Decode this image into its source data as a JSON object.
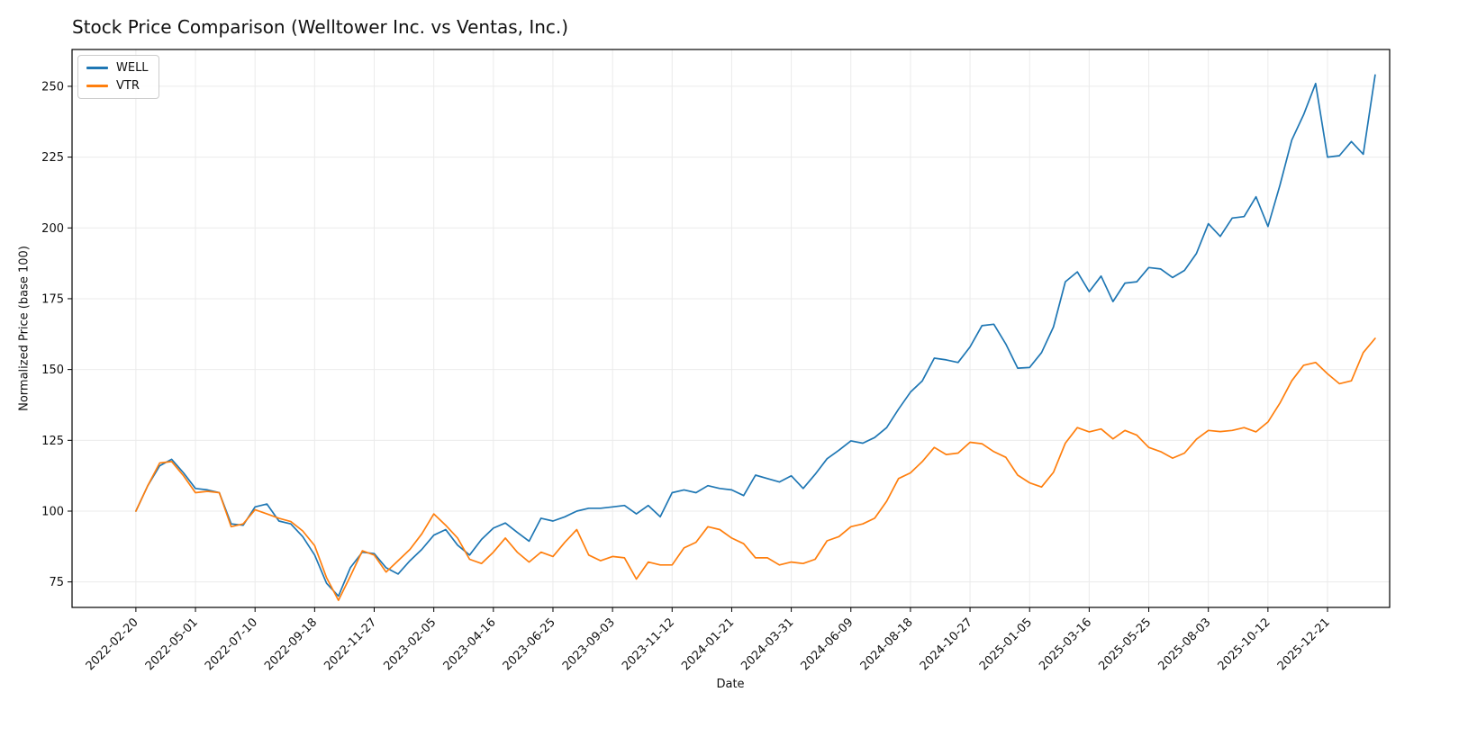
{
  "chart_data": {
    "type": "line",
    "title": "Stock Price Comparison (Welltower Inc. vs Ventas, Inc.)",
    "xlabel": "Date",
    "ylabel": "Normalized Price (base 100)",
    "grid": true,
    "legend_position": "upper left",
    "ylim": [
      66,
      263
    ],
    "xlim_days": [
      -75,
      1473
    ],
    "y_ticks": [
      75,
      100,
      125,
      150,
      175,
      200,
      225,
      250
    ],
    "x_tick_labels": [
      "2022-02-20",
      "2022-05-01",
      "2022-07-10",
      "2022-09-18",
      "2022-11-27",
      "2023-02-05",
      "2023-04-16",
      "2023-06-25",
      "2023-09-03",
      "2023-11-12",
      "2024-01-21",
      "2024-03-31",
      "2024-06-09",
      "2024-08-18",
      "2024-10-27",
      "2025-01-05",
      "2025-03-16",
      "2025-05-25",
      "2025-08-03",
      "2025-10-12",
      "2025-12-21"
    ],
    "dates": [
      "2022-02-20",
      "2022-03-06",
      "2022-03-20",
      "2022-04-03",
      "2022-04-17",
      "2022-05-01",
      "2022-05-15",
      "2022-05-29",
      "2022-06-12",
      "2022-06-26",
      "2022-07-10",
      "2022-07-24",
      "2022-08-07",
      "2022-08-21",
      "2022-09-04",
      "2022-09-18",
      "2022-10-02",
      "2022-10-16",
      "2022-10-30",
      "2022-11-13",
      "2022-11-27",
      "2022-12-11",
      "2022-12-25",
      "2023-01-08",
      "2023-01-22",
      "2023-02-05",
      "2023-02-19",
      "2023-03-05",
      "2023-03-19",
      "2023-04-02",
      "2023-04-16",
      "2023-04-30",
      "2023-05-14",
      "2023-05-28",
      "2023-06-11",
      "2023-06-25",
      "2023-07-09",
      "2023-07-23",
      "2023-08-06",
      "2023-08-20",
      "2023-09-03",
      "2023-09-17",
      "2023-10-01",
      "2023-10-15",
      "2023-10-29",
      "2023-11-12",
      "2023-11-26",
      "2023-12-10",
      "2023-12-24",
      "2024-01-07",
      "2024-01-21",
      "2024-02-04",
      "2024-02-18",
      "2024-03-03",
      "2024-03-17",
      "2024-03-31",
      "2024-04-14",
      "2024-04-28",
      "2024-05-12",
      "2024-05-26",
      "2024-06-09",
      "2024-06-23",
      "2024-07-07",
      "2024-07-21",
      "2024-08-04",
      "2024-08-18",
      "2024-09-01",
      "2024-09-15",
      "2024-09-29",
      "2024-10-13",
      "2024-10-27",
      "2024-11-10",
      "2024-11-24",
      "2024-12-08",
      "2024-12-22",
      "2025-01-05",
      "2025-01-19",
      "2025-02-02",
      "2025-02-16",
      "2025-03-02",
      "2025-03-16",
      "2025-03-30",
      "2025-04-13",
      "2025-04-27",
      "2025-05-11",
      "2025-05-25",
      "2025-06-08",
      "2025-06-22",
      "2025-07-06",
      "2025-07-20",
      "2025-08-03",
      "2025-08-17",
      "2025-08-31",
      "2025-09-14",
      "2025-09-28",
      "2025-10-12",
      "2025-10-26",
      "2025-11-09",
      "2025-11-23",
      "2025-12-07",
      "2025-12-21",
      "2026-01-04",
      "2026-01-18",
      "2026-02-01",
      "2026-02-15"
    ],
    "series": [
      {
        "name": "WELL",
        "color": "#1f77b4",
        "values": [
          100,
          109,
          116,
          118.3,
          113.5,
          108,
          107.5,
          106.5,
          95.5,
          95,
          101.5,
          102.5,
          96.5,
          95.5,
          91,
          84.5,
          74.5,
          70,
          80,
          85.5,
          85,
          80,
          77.8,
          82.5,
          86.5,
          91.5,
          93.5,
          88,
          84.5,
          90,
          94,
          95.8,
          92.5,
          89.4,
          97.5,
          96.5,
          98,
          100,
          101,
          101,
          101.5,
          102,
          99,
          102,
          98,
          106.5,
          107.5,
          106.5,
          109,
          108,
          107.5,
          105.5,
          112.7,
          111.5,
          110.3,
          112.5,
          108,
          113,
          118.5,
          121.5,
          124.8,
          124,
          126,
          129.5,
          136,
          142,
          146,
          154,
          153.4,
          152.5,
          158,
          165.5,
          166,
          159,
          150.5,
          150.7,
          156,
          165,
          181,
          184.5,
          177.5,
          183,
          174,
          180.5,
          181,
          186,
          185.5,
          182.5,
          185,
          191,
          201.5,
          197,
          203.5,
          204,
          211,
          200.5,
          215,
          231,
          240,
          251,
          225,
          225.5,
          230.5,
          226,
          254
        ]
      },
      {
        "name": "VTR",
        "color": "#ff7f0e",
        "values": [
          100,
          109,
          117,
          117.5,
          112.5,
          106.5,
          107,
          106.5,
          94.5,
          95.5,
          100.5,
          99,
          97.5,
          96.3,
          93,
          87.8,
          76.5,
          68.5,
          77,
          86,
          84.5,
          78.5,
          82.5,
          86.5,
          92,
          99,
          95,
          90.5,
          83,
          81.5,
          85.5,
          90.5,
          85.5,
          82,
          85.5,
          84,
          89,
          93.5,
          84.5,
          82.5,
          84,
          83.5,
          76,
          82,
          81,
          81,
          87,
          89,
          94.5,
          93.5,
          90.5,
          88.5,
          83.5,
          83.5,
          81,
          82,
          81.5,
          83,
          89.5,
          91,
          94.5,
          95.5,
          97.5,
          103.5,
          111.5,
          113.5,
          117.5,
          122.5,
          120,
          120.5,
          124.3,
          123.8,
          121,
          119,
          112.7,
          110,
          108.5,
          113.7,
          124,
          129.5,
          128,
          129,
          125.5,
          128.5,
          126.8,
          122.5,
          121,
          118.7,
          120.5,
          125.4,
          128.5,
          128.1,
          128.5,
          129.5,
          128,
          131.5,
          138.1,
          146,
          151.5,
          152.5,
          148.5,
          145,
          146,
          156,
          161
        ]
      }
    ],
    "style": {
      "grid_color": "#ebebeb",
      "spine_color": "#000000",
      "tick_label_color": "#111111",
      "background": "#ffffff"
    }
  }
}
